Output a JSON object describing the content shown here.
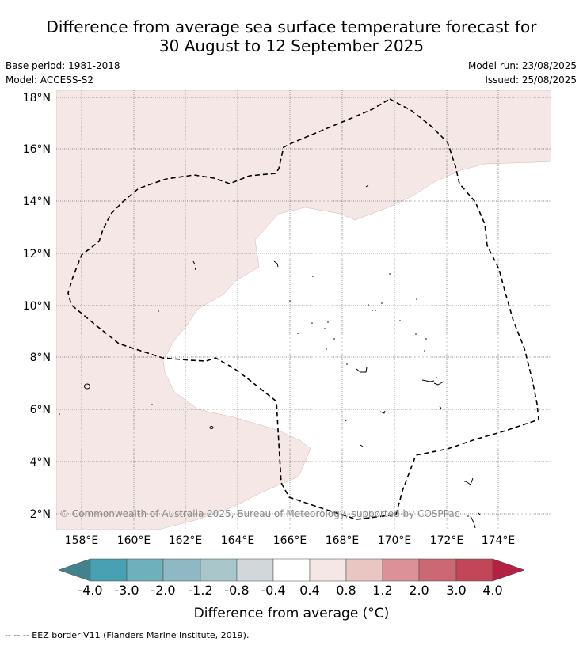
{
  "header": {
    "title_line1": "Difference from average sea surface temperature forecast for",
    "title_line2": "30 August to 12 September 2025",
    "base_period": "Base period: 1981-2018",
    "model": "Model: ACCESS-S2",
    "model_run": "Model run: 23/08/2025",
    "issued": "Issued: 25/08/2025"
  },
  "map": {
    "lat_labels": [
      "18°N",
      "16°N",
      "14°N",
      "12°N",
      "10°N",
      "8°N",
      "6°N",
      "4°N",
      "2°N"
    ],
    "lon_labels": [
      "158°E",
      "160°E",
      "162°E",
      "164°E",
      "166°E",
      "168°E",
      "170°E",
      "172°E",
      "174°E"
    ],
    "watermark": "© Commonwealth of Australia 2025, Bureau of Meteorology, supported by COSPPac",
    "anomaly_fill_color": "#f4e7e6",
    "anomaly_range": "0.4 to 0.8",
    "border_style": "dashed"
  },
  "colorbar": {
    "tick_labels": [
      "-4.0",
      "-3.0",
      "-2.0",
      "-1.2",
      "-0.8",
      "-0.4",
      "0.4",
      "0.8",
      "1.2",
      "2.0",
      "3.0",
      "4.0"
    ],
    "colors": [
      "#41828c",
      "#48a1b2",
      "#6fb0bd",
      "#8eb9c4",
      "#a9c7cb",
      "#d2d8da",
      "#ffffff",
      "#f4e7e6",
      "#eac6c3",
      "#db9197",
      "#cc6774",
      "#c24657",
      "#b41f44"
    ],
    "label": "Difference from average (°C)"
  },
  "footer": {
    "legend": "--  --  -- EEZ border V11 (Flanders Marine Institute, 2019)."
  }
}
